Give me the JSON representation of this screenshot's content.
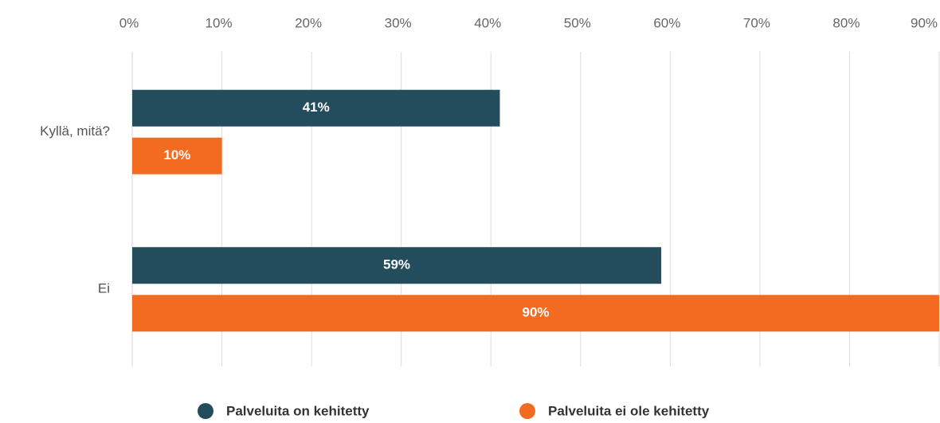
{
  "chart_data": {
    "type": "hbar",
    "categories": [
      "Kyllä, mitä?",
      "Ei"
    ],
    "series": [
      {
        "name": "Palveluita on kehitetty",
        "color": "#234d5c",
        "values": [
          41,
          59
        ],
        "value_labels": [
          "41%",
          "59%"
        ]
      },
      {
        "name": "Palveluita ei ole kehitetty",
        "color": "#f26b21",
        "values": [
          10,
          90
        ],
        "value_labels": [
          "10%",
          "90%"
        ]
      }
    ],
    "xlim": [
      0,
      90
    ],
    "xticks": [
      {
        "value": 0,
        "label": "0%"
      },
      {
        "value": 10,
        "label": "10%"
      },
      {
        "value": 20,
        "label": "20%"
      },
      {
        "value": 30,
        "label": "30%"
      },
      {
        "value": 40,
        "label": "40%"
      },
      {
        "value": 50,
        "label": "50%"
      },
      {
        "value": 60,
        "label": "60%"
      },
      {
        "value": 70,
        "label": "70%"
      },
      {
        "value": 80,
        "label": "80%"
      },
      {
        "value": 90,
        "label": "90%"
      }
    ],
    "grid": true,
    "legend": "bottom"
  }
}
